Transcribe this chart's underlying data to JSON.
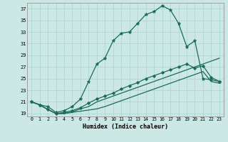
{
  "xlabel": "Humidex (Indice chaleur)",
  "bg_color": "#cce8e4",
  "grid_color": "#a8d4cc",
  "line_color": "#1a6b5a",
  "xlim": [
    -0.5,
    23.5
  ],
  "ylim": [
    18.5,
    38.0
  ],
  "yticks": [
    19,
    21,
    23,
    25,
    27,
    29,
    31,
    33,
    35,
    37
  ],
  "xticks": [
    0,
    1,
    2,
    3,
    4,
    5,
    6,
    7,
    8,
    9,
    10,
    11,
    12,
    13,
    14,
    15,
    16,
    17,
    18,
    19,
    20,
    21,
    22,
    23
  ],
  "line1_x": [
    0,
    1,
    2,
    3,
    4,
    5,
    6,
    7,
    8,
    9,
    10,
    11,
    12,
    13,
    14,
    15,
    16,
    17,
    18,
    19,
    20,
    21,
    22,
    23
  ],
  "line1_y": [
    21.0,
    20.5,
    20.2,
    19.2,
    19.5,
    20.2,
    21.5,
    24.5,
    27.5,
    28.5,
    31.5,
    32.8,
    33.0,
    34.5,
    36.0,
    36.5,
    37.5,
    36.8,
    34.5,
    30.5,
    31.5,
    25.0,
    24.8,
    24.5
  ],
  "line2_x": [
    0,
    1,
    2,
    3,
    4,
    5,
    6,
    7,
    8,
    9,
    10,
    11,
    12,
    13,
    14,
    15,
    16,
    17,
    18,
    19,
    20,
    21,
    22,
    23
  ],
  "line2_y": [
    21.0,
    20.5,
    19.7,
    19.0,
    19.2,
    19.5,
    20.0,
    20.8,
    21.5,
    22.0,
    22.5,
    23.2,
    23.8,
    24.3,
    25.0,
    25.5,
    26.0,
    26.5,
    27.0,
    27.5,
    26.8,
    27.2,
    25.2,
    24.5
  ],
  "line3_x": [
    0,
    1,
    2,
    3,
    4,
    5,
    6,
    7,
    8,
    9,
    10,
    11,
    12,
    13,
    14,
    15,
    16,
    17,
    18,
    19,
    20,
    21,
    22,
    23
  ],
  "line3_y": [
    21.0,
    20.5,
    19.7,
    19.0,
    19.0,
    19.3,
    19.8,
    20.2,
    21.0,
    21.5,
    22.0,
    22.5,
    23.0,
    23.5,
    24.0,
    24.5,
    25.0,
    25.5,
    26.0,
    26.5,
    27.0,
    27.5,
    28.0,
    28.5
  ],
  "line4_x": [
    0,
    1,
    2,
    3,
    4,
    5,
    6,
    7,
    8,
    9,
    10,
    11,
    12,
    13,
    14,
    15,
    16,
    17,
    18,
    19,
    20,
    21,
    22,
    23
  ],
  "line4_y": [
    21.0,
    20.5,
    19.7,
    19.0,
    19.0,
    19.2,
    19.4,
    19.6,
    19.8,
    20.2,
    20.7,
    21.2,
    21.7,
    22.2,
    22.7,
    23.2,
    23.7,
    24.2,
    24.7,
    25.2,
    25.7,
    26.2,
    24.5,
    24.2
  ]
}
